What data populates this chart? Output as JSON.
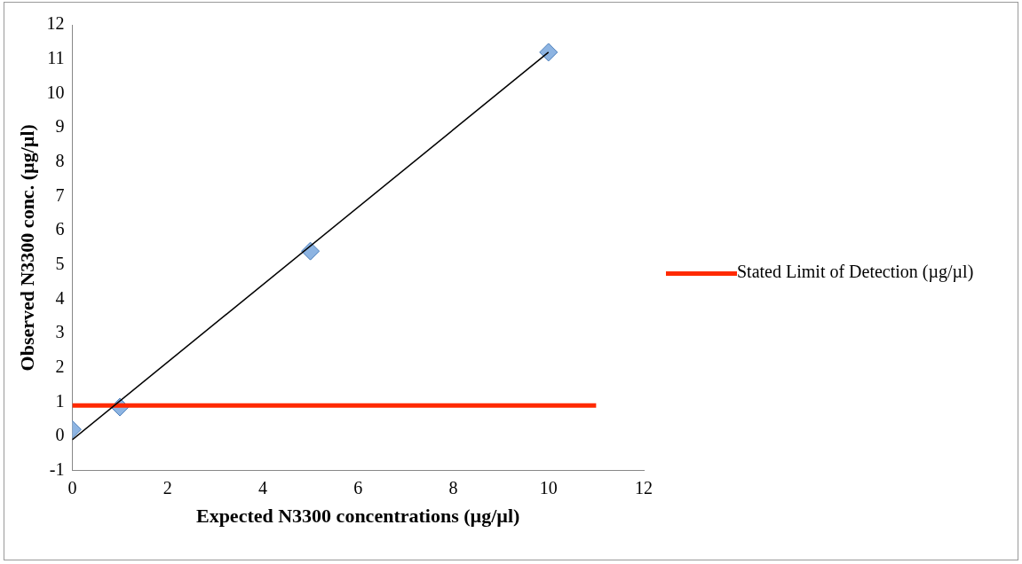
{
  "chart_data": {
    "type": "scatter",
    "xlabel": "Expected N3300 concentrations (µg/µl)",
    "ylabel": "Observed N3300 conc. (µg/µl)",
    "xlim": [
      0,
      12
    ],
    "xticks": [
      0,
      2,
      4,
      6,
      8,
      10,
      12
    ],
    "ylim": [
      -1,
      12
    ],
    "yticks": [
      -1,
      0,
      1,
      2,
      3,
      4,
      5,
      6,
      7,
      8,
      9,
      10,
      11,
      12
    ],
    "grid": false,
    "legend": "right",
    "marker": "diamond",
    "series": [
      {
        "type": "scatter",
        "color": "#8db4e2",
        "x": [
          0,
          1,
          5,
          10
        ],
        "values": [
          0.2,
          0.85,
          5.4,
          11.2
        ]
      },
      {
        "type": "line",
        "color": "#000000",
        "marker": "none",
        "x": [
          0,
          10
        ],
        "values": [
          -0.1,
          11.2
        ]
      },
      {
        "type": "line",
        "name": "Stated Limit of Detection (µg/µl)",
        "color": "#ff2a00",
        "marker": "none",
        "x": [
          0,
          11
        ],
        "values": [
          0.9,
          0.9
        ]
      }
    ]
  }
}
